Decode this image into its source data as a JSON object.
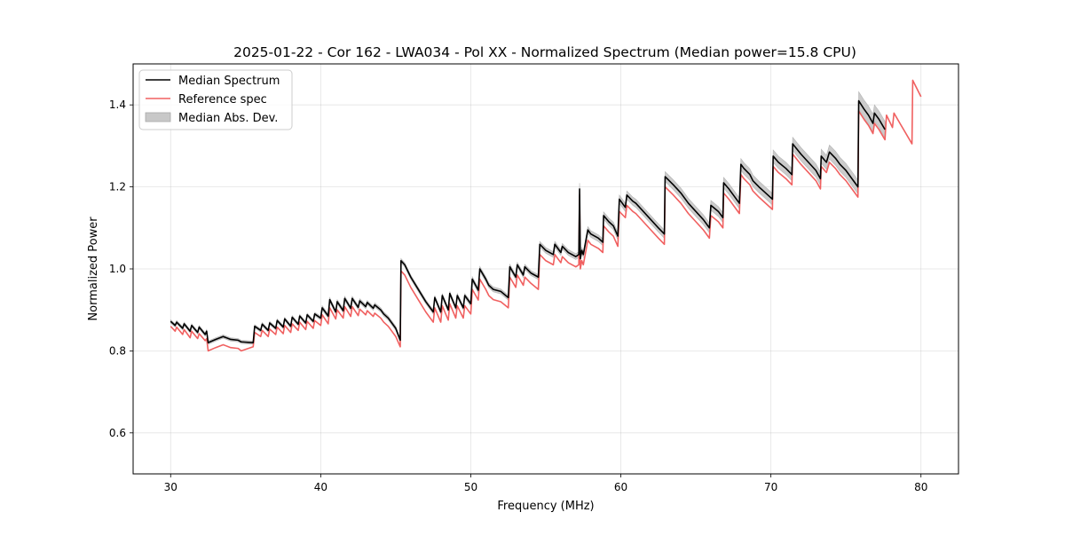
{
  "chart_data": {
    "type": "line",
    "title": "2025-01-22 - Cor 162 - LWA034 - Pol XX - Normalized Spectrum (Median power=15.8 CPU)",
    "xlabel": "Frequency (MHz)",
    "ylabel": "Normalized Power",
    "xlim": [
      27.5,
      82.5
    ],
    "ylim": [
      0.5,
      1.5
    ],
    "xticks": [
      30,
      40,
      50,
      60,
      70,
      80
    ],
    "yticks": [
      0.6,
      0.8,
      1.0,
      1.2,
      1.4
    ],
    "xtick_labels": [
      "30",
      "40",
      "50",
      "60",
      "70",
      "80"
    ],
    "ytick_labels": [
      "0.6",
      "0.8",
      "1.0",
      "1.2",
      "1.4"
    ],
    "grid": true,
    "legend_position": "upper-left",
    "legend": [
      {
        "label": "Median Spectrum",
        "kind": "line",
        "color": "#000000"
      },
      {
        "label": "Reference spec",
        "kind": "line",
        "color": "#f06060"
      },
      {
        "label": "Median Abs. Dev.",
        "kind": "patch",
        "color": "#c8c8c8"
      }
    ],
    "series": [
      {
        "name": "Median Spectrum",
        "color": "#000000",
        "x": [
          30.0,
          30.3,
          30.4,
          30.8,
          30.9,
          31.3,
          31.4,
          31.8,
          31.9,
          32.3,
          32.4,
          32.5,
          33.0,
          33.5,
          34.0,
          34.5,
          34.7,
          35.5,
          35.6,
          36.0,
          36.1,
          36.5,
          36.6,
          37.0,
          37.1,
          37.5,
          37.6,
          38.0,
          38.1,
          38.5,
          38.6,
          39.0,
          39.1,
          39.5,
          39.6,
          40.0,
          40.1,
          40.5,
          40.6,
          41.0,
          41.1,
          41.5,
          41.6,
          42.0,
          42.1,
          42.5,
          42.6,
          43.0,
          43.1,
          43.5,
          43.6,
          44.0,
          44.2,
          44.5,
          45.0,
          45.3,
          45.35,
          45.6,
          46.0,
          46.5,
          47.0,
          47.5,
          47.6,
          48.0,
          48.1,
          48.5,
          48.6,
          49.0,
          49.1,
          49.5,
          49.6,
          50.0,
          50.1,
          50.5,
          50.6,
          51.0,
          51.2,
          51.5,
          52.0,
          52.5,
          52.6,
          53.0,
          53.1,
          53.5,
          53.6,
          54.0,
          54.5,
          54.6,
          55.0,
          55.5,
          55.6,
          56.0,
          56.1,
          56.5,
          57.0,
          57.2,
          57.25,
          57.3,
          57.4,
          57.5,
          57.8,
          58.0,
          58.5,
          58.8,
          58.85,
          59.2,
          59.5,
          59.8,
          59.9,
          60.3,
          60.4,
          60.8,
          61.0,
          61.5,
          62.0,
          62.5,
          62.9,
          62.95,
          63.5,
          64.0,
          64.5,
          65.0,
          65.5,
          65.9,
          66.0,
          66.5,
          66.8,
          66.85,
          67.2,
          67.5,
          67.9,
          68.0,
          68.2,
          68.6,
          68.8,
          69.2,
          69.5,
          69.8,
          70.1,
          70.15,
          70.5,
          71.0,
          71.4,
          71.45,
          72.0,
          72.5,
          73.0,
          73.3,
          73.35,
          73.7,
          73.9,
          74.3,
          74.6,
          75.0,
          75.4,
          75.8,
          75.85,
          76.2,
          76.5,
          76.8,
          76.9,
          77.2,
          77.6
        ],
        "values": [
          0.872,
          0.862,
          0.87,
          0.855,
          0.866,
          0.848,
          0.862,
          0.845,
          0.858,
          0.84,
          0.848,
          0.82,
          0.828,
          0.835,
          0.828,
          0.826,
          0.822,
          0.82,
          0.86,
          0.85,
          0.865,
          0.85,
          0.868,
          0.855,
          0.874,
          0.858,
          0.878,
          0.86,
          0.882,
          0.865,
          0.885,
          0.868,
          0.888,
          0.872,
          0.89,
          0.88,
          0.905,
          0.885,
          0.925,
          0.895,
          0.92,
          0.898,
          0.928,
          0.904,
          0.928,
          0.906,
          0.922,
          0.908,
          0.918,
          0.904,
          0.912,
          0.9,
          0.89,
          0.88,
          0.855,
          0.826,
          1.02,
          1.01,
          0.98,
          0.95,
          0.92,
          0.895,
          0.93,
          0.895,
          0.935,
          0.9,
          0.94,
          0.905,
          0.935,
          0.905,
          0.935,
          0.915,
          0.975,
          0.948,
          1.0,
          0.975,
          0.96,
          0.95,
          0.945,
          0.93,
          1.005,
          0.98,
          1.01,
          0.985,
          1.005,
          0.99,
          0.98,
          1.06,
          1.045,
          1.035,
          1.06,
          1.04,
          1.055,
          1.04,
          1.03,
          1.035,
          1.195,
          1.025,
          1.045,
          1.035,
          1.095,
          1.085,
          1.075,
          1.065,
          1.13,
          1.115,
          1.105,
          1.08,
          1.17,
          1.15,
          1.18,
          1.165,
          1.16,
          1.14,
          1.12,
          1.1,
          1.085,
          1.225,
          1.205,
          1.185,
          1.16,
          1.14,
          1.12,
          1.1,
          1.155,
          1.14,
          1.125,
          1.21,
          1.195,
          1.18,
          1.16,
          1.255,
          1.245,
          1.23,
          1.215,
          1.2,
          1.19,
          1.18,
          1.17,
          1.275,
          1.26,
          1.245,
          1.23,
          1.305,
          1.28,
          1.26,
          1.24,
          1.22,
          1.275,
          1.26,
          1.285,
          1.27,
          1.255,
          1.24,
          1.22,
          1.2,
          1.41,
          1.39,
          1.375,
          1.355,
          1.38,
          1.365,
          1.34
        ],
        "mad": [
          0.004,
          0.004,
          0.004,
          0.004,
          0.004,
          0.004,
          0.004,
          0.004,
          0.004,
          0.004,
          0.004,
          0.004,
          0.004,
          0.004,
          0.004,
          0.004,
          0.004,
          0.004,
          0.004,
          0.004,
          0.004,
          0.004,
          0.004,
          0.004,
          0.004,
          0.004,
          0.004,
          0.004,
          0.004,
          0.004,
          0.004,
          0.004,
          0.004,
          0.004,
          0.004,
          0.005,
          0.005,
          0.005,
          0.005,
          0.005,
          0.005,
          0.005,
          0.005,
          0.005,
          0.005,
          0.005,
          0.005,
          0.005,
          0.005,
          0.005,
          0.005,
          0.005,
          0.005,
          0.005,
          0.005,
          0.005,
          0.005,
          0.005,
          0.005,
          0.005,
          0.005,
          0.005,
          0.005,
          0.005,
          0.005,
          0.005,
          0.005,
          0.005,
          0.005,
          0.005,
          0.005,
          0.006,
          0.006,
          0.006,
          0.006,
          0.006,
          0.006,
          0.006,
          0.006,
          0.006,
          0.006,
          0.006,
          0.006,
          0.006,
          0.006,
          0.006,
          0.006,
          0.007,
          0.007,
          0.007,
          0.007,
          0.007,
          0.007,
          0.007,
          0.007,
          0.007,
          0.014,
          0.007,
          0.007,
          0.007,
          0.008,
          0.008,
          0.008,
          0.008,
          0.009,
          0.009,
          0.009,
          0.009,
          0.01,
          0.01,
          0.01,
          0.01,
          0.01,
          0.01,
          0.01,
          0.01,
          0.01,
          0.012,
          0.012,
          0.012,
          0.012,
          0.012,
          0.012,
          0.012,
          0.012,
          0.012,
          0.012,
          0.013,
          0.013,
          0.013,
          0.013,
          0.014,
          0.014,
          0.014,
          0.014,
          0.014,
          0.014,
          0.014,
          0.014,
          0.015,
          0.015,
          0.015,
          0.015,
          0.016,
          0.016,
          0.016,
          0.016,
          0.016,
          0.017,
          0.017,
          0.017,
          0.017,
          0.017,
          0.017,
          0.017,
          0.017,
          0.022,
          0.022,
          0.022,
          0.022,
          0.02,
          0.02,
          0.02
        ]
      },
      {
        "name": "Reference spec",
        "color": "#f06060",
        "x": [
          30.0,
          30.3,
          30.4,
          30.8,
          30.9,
          31.3,
          31.4,
          31.8,
          31.9,
          32.3,
          32.4,
          32.5,
          33.0,
          33.5,
          34.0,
          34.5,
          34.7,
          35.5,
          35.6,
          36.0,
          36.1,
          36.5,
          36.6,
          37.0,
          37.1,
          37.5,
          37.6,
          38.0,
          38.1,
          38.5,
          38.6,
          39.0,
          39.1,
          39.5,
          39.6,
          40.0,
          40.1,
          40.5,
          40.6,
          41.0,
          41.1,
          41.5,
          41.6,
          42.0,
          42.1,
          42.5,
          42.6,
          43.0,
          43.1,
          43.5,
          43.6,
          44.0,
          44.2,
          44.5,
          45.0,
          45.3,
          45.35,
          45.6,
          46.0,
          46.5,
          47.0,
          47.5,
          47.6,
          48.0,
          48.1,
          48.5,
          48.6,
          49.0,
          49.1,
          49.5,
          49.6,
          50.0,
          50.1,
          50.5,
          50.6,
          51.0,
          51.2,
          51.5,
          52.0,
          52.5,
          52.6,
          53.0,
          53.1,
          53.5,
          53.6,
          54.0,
          54.5,
          54.6,
          55.0,
          55.5,
          55.6,
          56.0,
          56.1,
          56.5,
          57.0,
          57.2,
          57.25,
          57.3,
          57.4,
          57.5,
          57.8,
          58.0,
          58.5,
          58.8,
          58.85,
          59.2,
          59.5,
          59.8,
          59.9,
          60.3,
          60.4,
          60.8,
          61.0,
          61.5,
          62.0,
          62.5,
          62.9,
          62.95,
          63.5,
          64.0,
          64.5,
          65.0,
          65.5,
          65.9,
          66.0,
          66.5,
          66.8,
          66.85,
          67.2,
          67.5,
          67.9,
          68.0,
          68.2,
          68.6,
          68.8,
          69.2,
          69.5,
          69.8,
          70.1,
          70.15,
          70.5,
          71.0,
          71.4,
          71.45,
          72.0,
          72.5,
          73.0,
          73.3,
          73.35,
          73.7,
          73.9,
          74.3,
          74.6,
          75.0,
          75.4,
          75.8,
          75.85,
          76.2,
          76.5,
          76.8,
          76.9,
          77.2,
          77.6,
          77.7,
          78.1,
          78.2,
          79.4,
          79.45,
          80.0
        ],
        "values": [
          0.86,
          0.848,
          0.858,
          0.84,
          0.852,
          0.832,
          0.848,
          0.83,
          0.842,
          0.825,
          0.83,
          0.8,
          0.808,
          0.815,
          0.808,
          0.806,
          0.8,
          0.81,
          0.845,
          0.835,
          0.85,
          0.835,
          0.853,
          0.84,
          0.858,
          0.842,
          0.862,
          0.845,
          0.866,
          0.85,
          0.87,
          0.852,
          0.872,
          0.855,
          0.874,
          0.862,
          0.888,
          0.866,
          0.905,
          0.878,
          0.9,
          0.88,
          0.908,
          0.884,
          0.908,
          0.886,
          0.902,
          0.888,
          0.898,
          0.884,
          0.892,
          0.88,
          0.87,
          0.86,
          0.835,
          0.81,
          0.995,
          0.985,
          0.955,
          0.925,
          0.895,
          0.87,
          0.905,
          0.87,
          0.91,
          0.875,
          0.915,
          0.88,
          0.91,
          0.88,
          0.91,
          0.89,
          0.95,
          0.924,
          0.975,
          0.95,
          0.935,
          0.925,
          0.92,
          0.905,
          0.98,
          0.955,
          0.985,
          0.96,
          0.98,
          0.965,
          0.95,
          1.035,
          1.02,
          1.01,
          1.035,
          1.015,
          1.03,
          1.015,
          1.005,
          1.01,
          1.18,
          1.0,
          1.02,
          1.01,
          1.07,
          1.06,
          1.05,
          1.04,
          1.105,
          1.09,
          1.08,
          1.055,
          1.14,
          1.125,
          1.155,
          1.14,
          1.135,
          1.115,
          1.095,
          1.075,
          1.06,
          1.2,
          1.18,
          1.16,
          1.135,
          1.115,
          1.095,
          1.075,
          1.13,
          1.115,
          1.1,
          1.185,
          1.17,
          1.155,
          1.135,
          1.23,
          1.22,
          1.205,
          1.19,
          1.175,
          1.165,
          1.155,
          1.145,
          1.25,
          1.235,
          1.22,
          1.205,
          1.28,
          1.255,
          1.235,
          1.215,
          1.195,
          1.25,
          1.235,
          1.26,
          1.245,
          1.23,
          1.215,
          1.195,
          1.175,
          1.385,
          1.365,
          1.35,
          1.33,
          1.355,
          1.34,
          1.315,
          1.375,
          1.345,
          1.38,
          1.305,
          1.46,
          1.42
        ]
      }
    ]
  }
}
